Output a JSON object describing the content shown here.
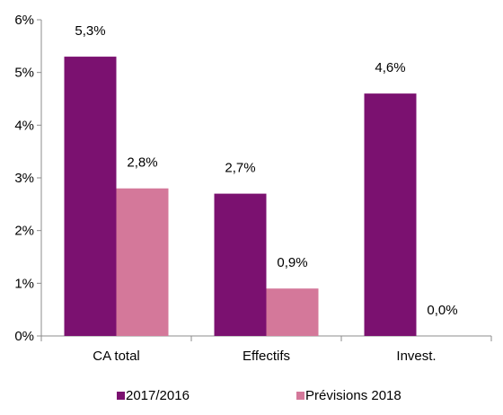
{
  "chart_data": {
    "type": "bar",
    "categories": [
      "CA total",
      "Effectifs",
      "Invest."
    ],
    "series": [
      {
        "name": "2017/2016",
        "values": [
          5.3,
          2.7,
          4.6
        ],
        "labels": [
          "5,3%",
          "2,7%",
          "4,6%"
        ],
        "color": "#7B1170"
      },
      {
        "name": "Prévisions 2018",
        "values": [
          2.8,
          0.9,
          0.0
        ],
        "labels": [
          "2,8%",
          "0,9%",
          "0,0%"
        ],
        "color": "#D4789A"
      }
    ],
    "ylim": [
      0,
      6
    ],
    "yticks": [
      0,
      1,
      2,
      3,
      4,
      5,
      6
    ],
    "ytick_labels": [
      "0%",
      "1%",
      "2%",
      "3%",
      "4%",
      "5%",
      "6%"
    ],
    "grid": false,
    "legend_position": "bottom"
  }
}
